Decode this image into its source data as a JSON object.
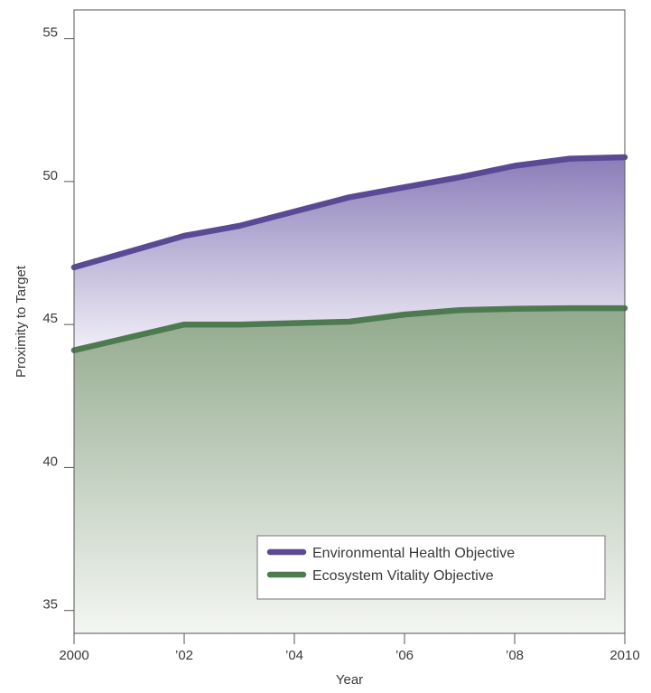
{
  "chart_data": {
    "type": "area",
    "xlabel": "Year",
    "ylabel": "Proximity to Target",
    "x": [
      2000,
      2001,
      2002,
      2003,
      2004,
      2005,
      2006,
      2007,
      2008,
      2009,
      2010
    ],
    "x_tick_values": [
      2000,
      2002,
      2004,
      2006,
      2008,
      2010
    ],
    "x_tick_labels": [
      "2000",
      "’02",
      "’04",
      "’06",
      "’08",
      "2010"
    ],
    "y_ticks": [
      35,
      40,
      45,
      50,
      55
    ],
    "xlim": [
      2000,
      2010
    ],
    "ylim": [
      34.2,
      56
    ],
    "grid": false,
    "legend_position": "bottom-right",
    "series": [
      {
        "name": "Environmental Health Objective",
        "color": "#5a4a96",
        "values": [
          47.0,
          47.55,
          48.1,
          48.45,
          48.95,
          49.45,
          49.8,
          50.15,
          50.55,
          50.8,
          50.85
        ]
      },
      {
        "name": "Ecosystem Vitality Objective",
        "color": "#4e7a50",
        "values": [
          44.1,
          44.55,
          45.0,
          45.0,
          45.05,
          45.1,
          45.35,
          45.5,
          45.55,
          45.57,
          45.57
        ]
      }
    ]
  }
}
